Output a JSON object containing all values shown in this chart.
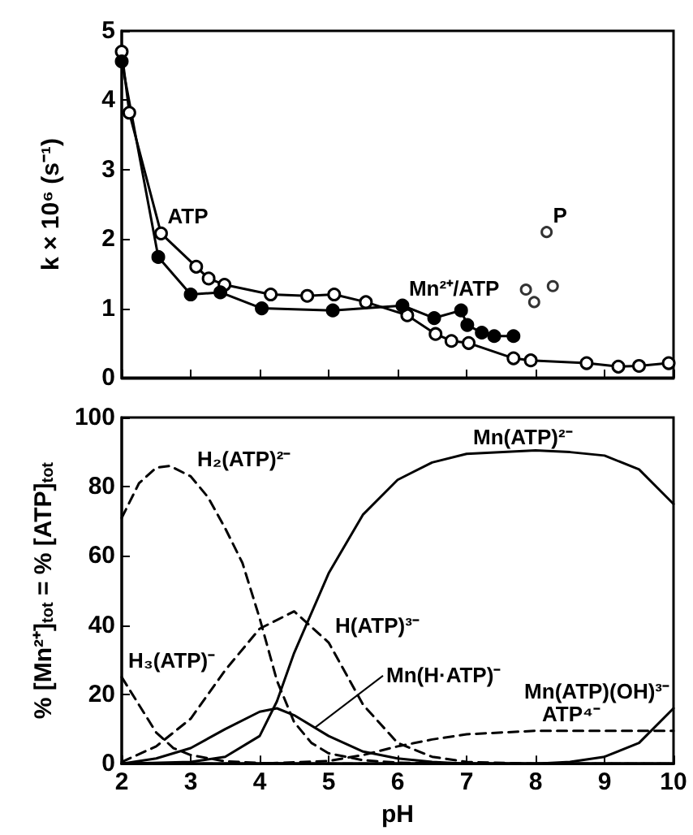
{
  "chart_data": [
    {
      "type": "line",
      "ylabel": "k × 10⁶ (s⁻¹)",
      "xlim": [
        2,
        10
      ],
      "xticks": [
        2,
        3,
        4,
        5,
        6,
        7,
        8,
        9,
        10
      ],
      "ylim": [
        0,
        5
      ],
      "yticks": [
        0,
        1,
        2,
        3,
        4,
        5
      ],
      "tick_labels": "y",
      "marker": "circle",
      "series": [
        {
          "color": "#ffffff",
          "x": [
            2.0,
            2.11,
            2.57,
            3.08,
            3.26,
            3.49,
            4.16,
            4.69,
            5.08,
            5.54,
            6.14,
            6.55,
            6.78,
            7.03,
            7.68,
            7.93,
            8.74,
            9.2,
            9.5,
            9.93
          ],
          "values": [
            4.7,
            3.82,
            2.08,
            1.6,
            1.43,
            1.34,
            1.2,
            1.18,
            1.2,
            1.09,
            0.9,
            0.63,
            0.53,
            0.5,
            0.28,
            0.25,
            0.21,
            0.16,
            0.17,
            0.21
          ]
        },
        {
          "color": "#000000",
          "x": [
            2.0,
            2.53,
            3.0,
            3.43,
            4.03,
            5.06,
            6.07,
            6.53,
            6.92,
            7.01,
            7.22,
            7.4,
            7.68
          ],
          "values": [
            4.56,
            1.74,
            1.2,
            1.23,
            1.0,
            0.97,
            1.04,
            0.86,
            0.97,
            0.76,
            0.65,
            0.6,
            0.6
          ]
        },
        {
          "type": "scatter",
          "color": "#ffffff",
          "x": [
            8.16,
            7.86,
            7.98,
            8.25
          ],
          "values": [
            2.1,
            1.27,
            1.09,
            1.32
          ]
        }
      ],
      "annotations": [
        {
          "text": "ATP",
          "x": 2.57,
          "y": 2.08
        },
        {
          "text": "Mn²⁺/ATP",
          "x": 6.07,
          "y": 1.04
        },
        {
          "text": "P",
          "x": 8.16,
          "y": 2.1
        }
      ]
    },
    {
      "type": "line",
      "xlabel": "pH",
      "ylabel": "% [Mn²⁺]$_{tot}$ = % [ATP]$_{tot}$",
      "xlim": [
        2,
        10
      ],
      "xticks": [
        2,
        3,
        4,
        5,
        6,
        7,
        8,
        9,
        10
      ],
      "ylim": [
        0,
        100
      ],
      "yticks": [
        0,
        20,
        40,
        60,
        80,
        100
      ],
      "marker": "none",
      "series": [
        {
          "color": "#000000",
          "line_style": "dashed",
          "x": [
            2,
            2.25,
            2.5,
            2.7,
            3,
            3.25,
            3.5,
            3.75,
            4,
            4.25,
            4.5,
            4.75,
            5,
            5.5,
            6,
            7,
            10
          ],
          "values": [
            71,
            81,
            85.5,
            86,
            83,
            77,
            68,
            58,
            42,
            24,
            12,
            6,
            3,
            1,
            0.3,
            0,
            0
          ]
        },
        {
          "color": "#000000",
          "line_style": "dashed",
          "x": [
            2,
            2.25,
            2.5,
            2.75,
            3,
            3.5,
            4,
            4.5,
            10
          ],
          "values": [
            25,
            17,
            9,
            4.5,
            2.5,
            0.7,
            0.2,
            0,
            0
          ]
        },
        {
          "color": "#000000",
          "line_style": "dashed",
          "x": [
            2,
            2.5,
            3,
            3.5,
            4,
            4.5,
            5,
            5.5,
            6,
            6.5,
            7,
            8,
            10
          ],
          "values": [
            0.5,
            5,
            13,
            27,
            39,
            44,
            35,
            17,
            6,
            2,
            0.5,
            0,
            0
          ]
        },
        {
          "color": "#000000",
          "line_style": "solid",
          "x": [
            2,
            3,
            3.5,
            4,
            4.25,
            4.5,
            5,
            5.5,
            6,
            6.5,
            7,
            8,
            8.5,
            9,
            9.5,
            10
          ],
          "values": [
            0,
            0.5,
            2,
            8,
            18,
            32,
            55,
            72,
            82,
            87,
            89.5,
            90.5,
            90,
            89,
            85,
            75
          ]
        },
        {
          "color": "#000000",
          "line_style": "solid",
          "x": [
            2,
            2.5,
            3,
            3.5,
            4,
            4.25,
            4.5,
            5,
            5.5,
            6,
            6.5,
            7,
            10
          ],
          "values": [
            0,
            1.5,
            4.5,
            10,
            15,
            16,
            14,
            8,
            3.5,
            1.5,
            0.5,
            0,
            0
          ]
        },
        {
          "color": "#000000",
          "line_style": "dashed",
          "x": [
            2,
            4,
            5,
            5.5,
            6,
            6.5,
            7,
            8,
            9,
            10
          ],
          "values": [
            0,
            0,
            0.8,
            2.5,
            5,
            7,
            8.5,
            9.5,
            9.5,
            9.5
          ]
        },
        {
          "color": "#000000",
          "line_style": "solid",
          "x": [
            2,
            8,
            8.5,
            9,
            9.5,
            10
          ],
          "values": [
            0,
            0,
            0.5,
            2,
            6,
            16
          ]
        }
      ],
      "annotations": [
        {
          "text": "H₂(ATP)²⁻",
          "x": 3,
          "y": 83
        },
        {
          "text": "H₃(ATP)⁻",
          "x": 2,
          "y": 25
        },
        {
          "text": "H(ATP)³⁻",
          "x": 5,
          "y": 35
        },
        {
          "text": "Mn(H·ATP)⁻",
          "x": 4.8,
          "y": 10.4
        },
        {
          "text": "Mn(ATP)²⁻",
          "x": 7,
          "y": 89.5
        },
        {
          "text": "Mn(ATP)(OH)³⁻",
          "x": 10,
          "y": 16
        },
        {
          "text": "ATP⁴⁻",
          "x": 8,
          "y": 9.5
        }
      ]
    }
  ]
}
